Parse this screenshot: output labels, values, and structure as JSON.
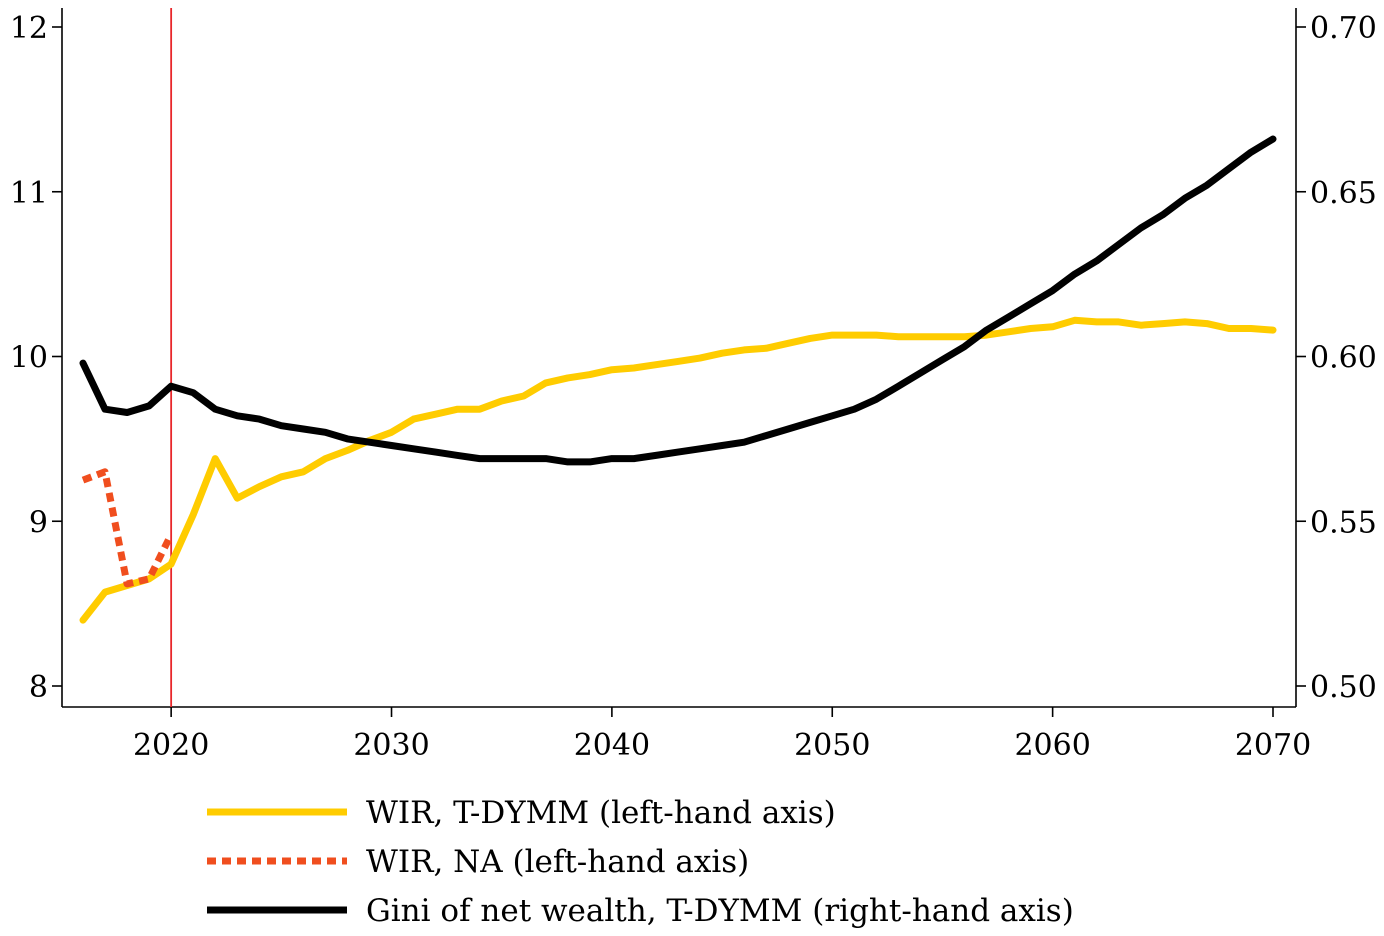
{
  "chart_data": {
    "type": "line",
    "title": "",
    "xlabel": "",
    "ylabel_left": "",
    "ylabel_right": "",
    "x_range": [
      2016,
      2070
    ],
    "x_ticks": [
      2020,
      2030,
      2040,
      2050,
      2060,
      2070
    ],
    "y_left_range": [
      8,
      12
    ],
    "y_left_ticks": [
      8,
      9,
      10,
      11,
      12
    ],
    "y_right_range": [
      0.5,
      0.7
    ],
    "y_right_ticks": [
      "0.50",
      "0.55",
      "0.60",
      "0.65",
      "0.70"
    ],
    "vertical_line": {
      "x": 2020,
      "color": "#e8262a"
    },
    "grid": false,
    "legend_position": "bottom",
    "series": [
      {
        "name": "WIR, T-DYMM (left-hand axis)",
        "axis": "left",
        "color": "#ffcc00",
        "style": "solid",
        "x": [
          2016,
          2017,
          2018,
          2019,
          2020,
          2021,
          2022,
          2023,
          2024,
          2025,
          2026,
          2027,
          2028,
          2029,
          2030,
          2031,
          2032,
          2033,
          2034,
          2035,
          2036,
          2037,
          2038,
          2039,
          2040,
          2041,
          2042,
          2043,
          2044,
          2045,
          2046,
          2047,
          2048,
          2049,
          2050,
          2051,
          2052,
          2053,
          2054,
          2055,
          2056,
          2057,
          2058,
          2059,
          2060,
          2061,
          2062,
          2063,
          2064,
          2065,
          2066,
          2067,
          2068,
          2069,
          2070
        ],
        "y": [
          8.4,
          8.57,
          8.61,
          8.65,
          8.74,
          9.04,
          9.38,
          9.14,
          9.21,
          9.27,
          9.3,
          9.38,
          9.43,
          9.49,
          9.54,
          9.62,
          9.65,
          9.68,
          9.68,
          9.73,
          9.76,
          9.84,
          9.87,
          9.89,
          9.92,
          9.93,
          9.95,
          9.97,
          9.99,
          10.02,
          10.04,
          10.05,
          10.08,
          10.11,
          10.13,
          10.13,
          10.13,
          10.12,
          10.12,
          10.12,
          10.12,
          10.13,
          10.15,
          10.17,
          10.18,
          10.22,
          10.21,
          10.21,
          10.19,
          10.2,
          10.21,
          10.2,
          10.17,
          10.17,
          10.16
        ]
      },
      {
        "name": "WIR, NA (left-hand axis)",
        "axis": "left",
        "color": "#f04e1e",
        "style": "dotted",
        "x": [
          2016,
          2017,
          2018,
          2019,
          2020
        ],
        "y": [
          9.25,
          9.3,
          8.62,
          8.65,
          8.92
        ]
      },
      {
        "name": "Gini of net wealth, T-DYMM (right-hand axis)",
        "axis": "right",
        "color": "#000000",
        "style": "solid",
        "x": [
          2016,
          2017,
          2018,
          2019,
          2020,
          2021,
          2022,
          2023,
          2024,
          2025,
          2026,
          2027,
          2028,
          2029,
          2030,
          2031,
          2032,
          2033,
          2034,
          2035,
          2036,
          2037,
          2038,
          2039,
          2040,
          2041,
          2042,
          2043,
          2044,
          2045,
          2046,
          2047,
          2048,
          2049,
          2050,
          2051,
          2052,
          2053,
          2054,
          2055,
          2056,
          2057,
          2058,
          2059,
          2060,
          2061,
          2062,
          2063,
          2064,
          2065,
          2066,
          2067,
          2068,
          2069,
          2070
        ],
        "y": [
          0.598,
          0.584,
          0.583,
          0.585,
          0.591,
          0.589,
          0.584,
          0.582,
          0.581,
          0.579,
          0.578,
          0.577,
          0.575,
          0.574,
          0.573,
          0.572,
          0.571,
          0.57,
          0.569,
          0.569,
          0.569,
          0.569,
          0.568,
          0.568,
          0.569,
          0.569,
          0.57,
          0.571,
          0.572,
          0.573,
          0.574,
          0.576,
          0.578,
          0.58,
          0.582,
          0.584,
          0.587,
          0.591,
          0.595,
          0.599,
          0.603,
          0.608,
          0.612,
          0.616,
          0.62,
          0.625,
          0.629,
          0.634,
          0.639,
          0.643,
          0.648,
          0.652,
          0.657,
          0.662,
          0.666
        ]
      }
    ]
  }
}
